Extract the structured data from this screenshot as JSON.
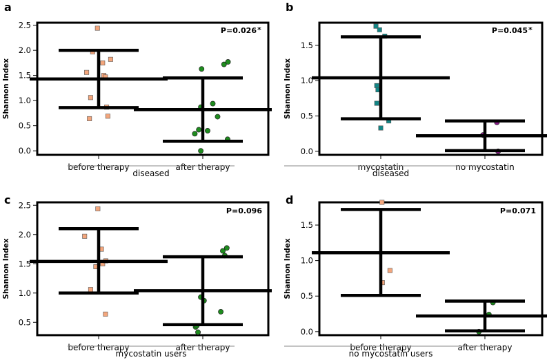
{
  "chart_data": [
    {
      "panel": "a",
      "type": "scatter",
      "title": "",
      "ylabel": "Shannon Index",
      "group_label": "diseased",
      "pvalue": "P=0.026",
      "significant": true,
      "ylim": [
        -0.08,
        2.55
      ],
      "yticks": [
        "0.0",
        "0.5",
        "1.0",
        "1.5",
        "2.0",
        "2.5"
      ],
      "categories": [
        "before therapy",
        "after therapy"
      ],
      "summary": [
        {
          "mean": 1.43,
          "upper": 2.0,
          "lower": 0.86
        },
        {
          "mean": 0.82,
          "upper": 1.45,
          "lower": 0.19
        }
      ],
      "series": [
        {
          "name": "before therapy",
          "marker": "square",
          "color": "#f4a67c",
          "points": [
            [
              -0.3,
              1.56
            ],
            [
              -0.15,
              1.97
            ],
            [
              -0.03,
              2.44
            ],
            [
              0.1,
              1.75
            ],
            [
              0.13,
              1.5
            ],
            [
              0.3,
              1.82
            ],
            [
              -0.2,
              1.06
            ],
            [
              -0.23,
              0.64
            ],
            [
              0.2,
              0.87
            ],
            [
              0.23,
              0.69
            ],
            [
              0.17,
              1.47
            ]
          ]
        },
        {
          "name": "after therapy",
          "marker": "circle",
          "color": "#1e8c1e",
          "points": [
            [
              -0.03,
              1.63
            ],
            [
              0.53,
              1.72
            ],
            [
              0.63,
              1.77
            ],
            [
              -0.05,
              0.87
            ],
            [
              0.25,
              0.94
            ],
            [
              0.37,
              0.68
            ],
            [
              -0.1,
              0.42
            ],
            [
              0.12,
              0.4
            ],
            [
              -0.2,
              0.34
            ],
            [
              0.62,
              0.23
            ],
            [
              -0.05,
              0.0
            ]
          ]
        }
      ]
    },
    {
      "panel": "b",
      "type": "scatter",
      "title": "",
      "ylabel": "Shannon Index",
      "group_label": "diseased",
      "pvalue": "P=0.045",
      "significant": true,
      "ylim": [
        -0.05,
        1.82
      ],
      "yticks": [
        "0.0",
        "0.5",
        "1.0",
        "1.5"
      ],
      "categories": [
        "mycostatin",
        "no mycostatin"
      ],
      "summary": [
        {
          "mean": 1.04,
          "upper": 1.62,
          "lower": 0.46
        },
        {
          "mean": 0.22,
          "upper": 0.43,
          "lower": 0.01
        }
      ],
      "series": [
        {
          "name": "mycostatin",
          "marker": "square",
          "color": "#128686",
          "points": [
            [
              -0.12,
              1.77
            ],
            [
              -0.03,
              1.72
            ],
            [
              0.1,
              1.63
            ],
            [
              -0.1,
              0.93
            ],
            [
              -0.07,
              0.87
            ],
            [
              -0.1,
              0.68
            ],
            [
              0.0,
              0.33
            ],
            [
              0.2,
              0.43
            ]
          ]
        },
        {
          "name": "no mycostatin",
          "marker": "circle",
          "color": "#8c1e8c",
          "points": [
            [
              -0.05,
              0.23
            ],
            [
              0.3,
              0.41
            ],
            [
              0.33,
              0.0
            ]
          ]
        }
      ]
    },
    {
      "panel": "c",
      "type": "scatter",
      "title": "",
      "ylabel": "Shannon Index",
      "group_label": "mycostatin users",
      "pvalue": "P=0.096",
      "significant": false,
      "ylim": [
        0.28,
        2.55
      ],
      "yticks": [
        "0.5",
        "1.0",
        "1.5",
        "2.0",
        "2.5"
      ],
      "categories": [
        "before therapy",
        "after therapy"
      ],
      "summary": [
        {
          "mean": 1.54,
          "upper": 2.1,
          "lower": 1.0
        },
        {
          "mean": 1.04,
          "upper": 1.62,
          "lower": 0.46
        }
      ],
      "series": [
        {
          "name": "before therapy",
          "marker": "square",
          "color": "#f4a67c",
          "points": [
            [
              -0.02,
              2.44
            ],
            [
              -0.35,
              1.97
            ],
            [
              0.07,
              1.75
            ],
            [
              -0.07,
              1.45
            ],
            [
              0.1,
              1.5
            ],
            [
              0.18,
              1.55
            ],
            [
              -0.2,
              1.06
            ],
            [
              0.17,
              0.64
            ]
          ]
        },
        {
          "name": "after therapy",
          "marker": "circle",
          "color": "#1e8c1e",
          "points": [
            [
              0.5,
              1.72
            ],
            [
              0.6,
              1.77
            ],
            [
              0.55,
              1.64
            ],
            [
              -0.05,
              0.93
            ],
            [
              0.03,
              0.87
            ],
            [
              0.45,
              0.68
            ],
            [
              -0.18,
              0.42
            ],
            [
              -0.15,
              0.44
            ],
            [
              -0.12,
              0.33
            ]
          ]
        }
      ]
    },
    {
      "panel": "d",
      "type": "scatter",
      "title": "",
      "ylabel": "Shannon Index",
      "group_label": "no mycostatin users",
      "pvalue": "P=0.071",
      "significant": false,
      "ylim": [
        -0.05,
        1.82
      ],
      "yticks": [
        "0.0",
        "0.5",
        "1.0",
        "1.5"
      ],
      "categories": [
        "before therapy",
        "after therapy"
      ],
      "summary": [
        {
          "mean": 1.11,
          "upper": 1.72,
          "lower": 0.51
        },
        {
          "mean": 0.22,
          "upper": 0.43,
          "lower": 0.01
        }
      ],
      "series": [
        {
          "name": "before therapy",
          "marker": "square",
          "color": "#f4a67c",
          "points": [
            [
              0.03,
              1.82
            ],
            [
              0.23,
              0.86
            ],
            [
              0.04,
              0.69
            ]
          ]
        },
        {
          "name": "after therapy",
          "marker": "circle",
          "color": "#1e8c1e",
          "points": [
            [
              0.2,
              0.41
            ],
            [
              0.1,
              0.24
            ],
            [
              -0.15,
              0.0
            ]
          ]
        }
      ]
    }
  ]
}
